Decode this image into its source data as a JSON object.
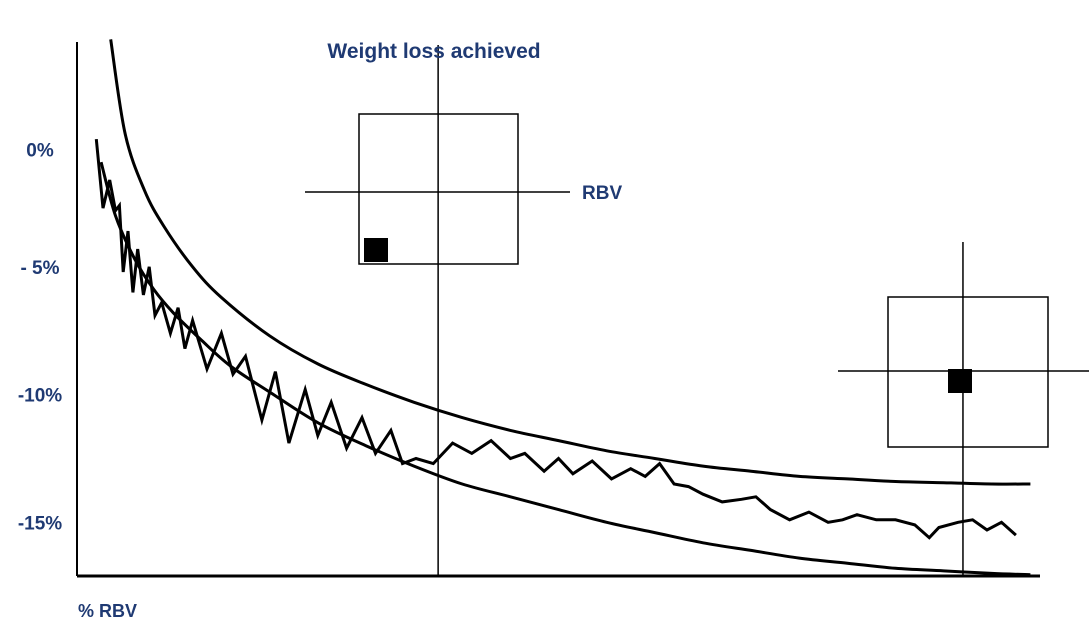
{
  "chart_data": {
    "type": "line",
    "title": "Weight loss achieved",
    "xlabel": "% RBV",
    "ylabel": "",
    "ylim": [
      -16.7,
      4.2
    ],
    "xlim": [
      0,
      100
    ],
    "yticks": [
      {
        "label": "0%",
        "value": 0
      },
      {
        "label": "- 5%",
        "value": -4.6
      },
      {
        "label": "-10%",
        "value": -9.6
      },
      {
        "label": "-15%",
        "value": -14.6
      }
    ],
    "series": [
      {
        "kind": "upper-curve",
        "x": [
          3.5,
          5,
          7,
          9,
          12,
          15,
          20,
          25,
          30,
          35,
          40,
          45,
          50,
          55,
          60,
          65,
          70,
          75,
          80,
          85,
          90,
          95,
          99
        ],
        "values": [
          4.3,
          0.6,
          -1.6,
          -3.0,
          -4.6,
          -5.8,
          -7.3,
          -8.4,
          -9.2,
          -9.9,
          -10.5,
          -11.0,
          -11.4,
          -11.8,
          -12.1,
          -12.4,
          -12.6,
          -12.8,
          -12.9,
          -13.0,
          -13.05,
          -13.1,
          -13.1
        ]
      },
      {
        "kind": "lower-curve",
        "x": [
          2.5,
          4,
          6,
          8,
          10,
          13,
          16,
          20,
          25,
          30,
          35,
          40,
          45,
          50,
          55,
          60,
          65,
          70,
          75,
          80,
          85,
          90,
          95,
          99
        ],
        "values": [
          -0.5,
          -2.6,
          -4.3,
          -5.5,
          -6.4,
          -7.5,
          -8.5,
          -9.5,
          -10.7,
          -11.6,
          -12.4,
          -13.1,
          -13.6,
          -14.1,
          -14.6,
          -15.0,
          -15.4,
          -15.7,
          -16.0,
          -16.2,
          -16.4,
          -16.5,
          -16.6,
          -16.65
        ]
      },
      {
        "kind": "measured",
        "x": [
          2,
          2.7,
          3.4,
          4.0,
          4.4,
          4.8,
          5.3,
          5.8,
          6.3,
          6.9,
          7.5,
          8.1,
          8.8,
          9.7,
          10.5,
          11.2,
          12.0,
          13.5,
          15.0,
          16.2,
          17.5,
          19.2,
          20.6,
          22.0,
          23.7,
          25.0,
          26.4,
          28.0,
          29.6,
          31.0,
          32.6,
          33.8,
          35.2,
          37.0,
          39.0,
          41.0,
          43.0,
          45.0,
          46.5,
          48.5,
          50.0,
          51.5,
          53.5,
          55.5,
          57.5,
          59.0,
          60.5,
          62.0,
          63.5,
          65.0,
          67.0,
          69.0,
          70.5,
          72.0,
          74.0,
          76.0,
          78.0,
          79.5,
          81.0,
          83.0,
          85.0,
          87.0,
          88.5,
          89.5,
          91.5,
          93.0,
          94.5,
          96.0,
          97.5
        ],
        "values": [
          0.4,
          -2.3,
          -1.2,
          -2.4,
          -2.2,
          -4.8,
          -3.2,
          -5.6,
          -3.9,
          -5.7,
          -4.6,
          -6.5,
          -6.0,
          -7.2,
          -6.2,
          -7.8,
          -6.7,
          -8.6,
          -7.2,
          -8.8,
          -8.1,
          -10.6,
          -8.7,
          -11.5,
          -9.4,
          -11.2,
          -9.9,
          -11.7,
          -10.5,
          -11.9,
          -11.0,
          -12.3,
          -12.1,
          -12.3,
          -11.5,
          -11.9,
          -11.4,
          -12.1,
          -11.9,
          -12.6,
          -12.1,
          -12.7,
          -12.2,
          -12.9,
          -12.5,
          -12.8,
          -12.3,
          -13.1,
          -13.2,
          -13.5,
          -13.8,
          -13.7,
          -13.6,
          -14.1,
          -14.5,
          -14.2,
          -14.6,
          -14.5,
          -14.3,
          -14.5,
          -14.5,
          -14.7,
          -15.2,
          -14.8,
          -14.6,
          -14.5,
          -14.9,
          -14.6,
          -15.1
        ]
      }
    ],
    "vlines": [
      {
        "label": "Weight loss achieved",
        "x": 37.5
      },
      {
        "label": "",
        "x": 92
      }
    ],
    "insets": [
      {
        "hline_label": "RBV",
        "marker_x": 0.18,
        "marker_y": -0.2
      },
      {
        "hline_label": "",
        "marker_x": 0.5,
        "marker_y": -0.08
      }
    ]
  }
}
